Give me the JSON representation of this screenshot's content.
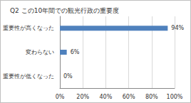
{
  "chart_data": {
    "type": "bar",
    "title": "Q2 この10年間での観光行政の重要度",
    "orientation": "horizontal",
    "categories": [
      "重要性が高くなった",
      "変わらない",
      "重要性が低くなった"
    ],
    "values": [
      94,
      6,
      0
    ],
    "value_labels": [
      "94%",
      "6%",
      "0%"
    ],
    "data_labels": true,
    "color": "#4f81bd",
    "xlim": [
      0,
      100
    ],
    "xticks": [
      {
        "value": 0,
        "label": "0%"
      },
      {
        "value": 20,
        "label": "20%"
      },
      {
        "value": 40,
        "label": "40%"
      },
      {
        "value": 60,
        "label": "60%"
      },
      {
        "value": 80,
        "label": "80%"
      },
      {
        "value": 100,
        "label": "100%"
      }
    ],
    "grid": true
  }
}
